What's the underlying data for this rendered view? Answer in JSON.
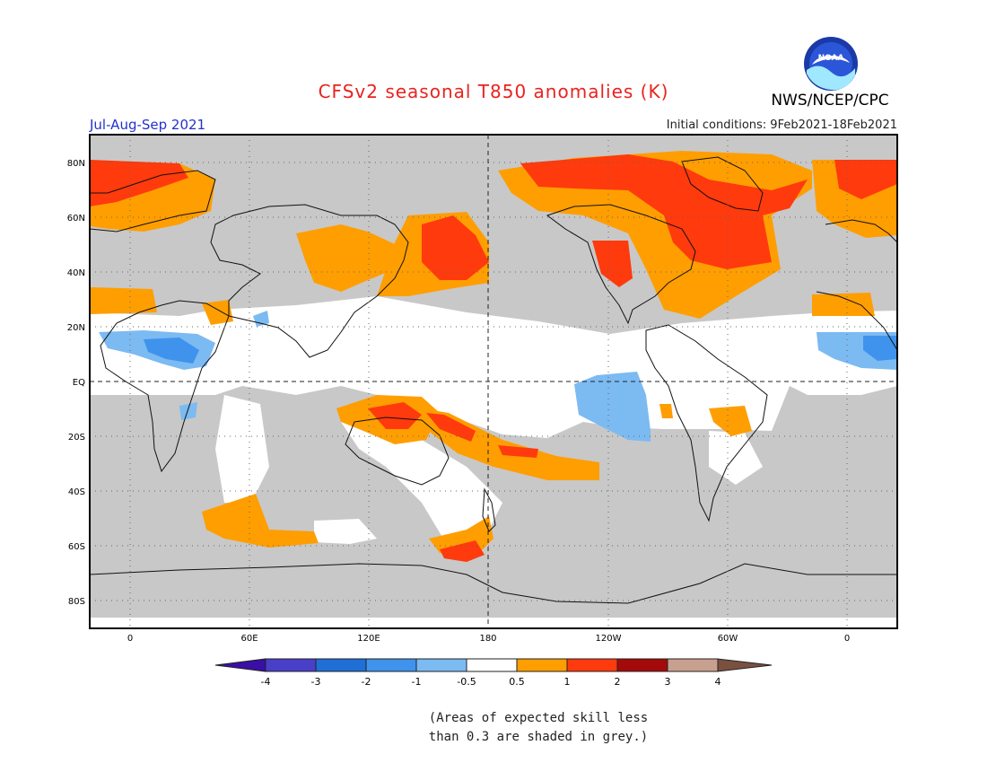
{
  "title": "CFSv2 seasonal T850 anomalies (K)",
  "organization": "NWS/NCEP/CPC",
  "logo_text": "NOAA",
  "season": "Jul-Aug-Sep 2021",
  "initial_conditions": "Initial conditions: 9Feb2021-18Feb2021",
  "lat_labels": [
    "80N",
    "60N",
    "40N",
    "20N",
    "EQ",
    "20S",
    "40S",
    "60S",
    "80S"
  ],
  "lon_labels": [
    "0",
    "60E",
    "120E",
    "180",
    "120W",
    "60W",
    "0"
  ],
  "colorbar": {
    "tick_labels": [
      "-4",
      "-3",
      "-2",
      "-1",
      "-0.5",
      "0.5",
      "1",
      "2",
      "3",
      "4"
    ],
    "colors": [
      "#3a0fa5",
      "#4a3fc8",
      "#1f6fd6",
      "#3f93ec",
      "#7cbaf2",
      "#ffffff",
      "#ff9e00",
      "#ff3a0d",
      "#a50a0a",
      "#c8a090",
      "#7a5040"
    ]
  },
  "note_lines": [
    "(Areas of expected skill less",
    "than 0.3 are shaded in grey.)"
  ],
  "map_colors": {
    "skill_grey": "#c8c8c8",
    "neutral": "#ffffff",
    "warm_weak": "#ff9e00",
    "warm_strong": "#ff3a0d",
    "cool_weak": "#7cbaf2",
    "cool_medium": "#3f93ec"
  }
}
